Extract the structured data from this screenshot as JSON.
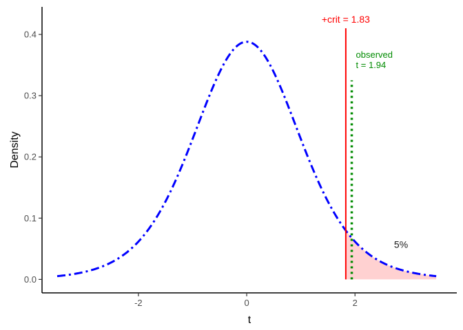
{
  "chart_data": {
    "type": "line",
    "title": "",
    "xlabel": "t",
    "ylabel": "Density",
    "xlim": [
      -3.78,
      3.88
    ],
    "ylim": [
      -0.022,
      0.445
    ],
    "x_ticks": [
      -2,
      0,
      2
    ],
    "x_tick_labels": [
      "-2",
      "0",
      "2"
    ],
    "y_ticks": [
      0.0,
      0.1,
      0.2,
      0.3,
      0.4
    ],
    "y_tick_labels": [
      "0.0",
      "0.1",
      "0.2",
      "0.3",
      "0.4"
    ],
    "grid": false,
    "legend": "none",
    "distribution": {
      "family": "student-t",
      "df": 9
    },
    "curve_x_range": [
      -3.5,
      3.5
    ],
    "series": [
      {
        "style": "dashed-dotted",
        "color": "#0000ff"
      }
    ],
    "shaded_region": {
      "x_from": 1.83,
      "x_to": 3.5,
      "color": "#ffd1d1"
    },
    "critical_line": {
      "x": 1.83,
      "y_top": 0.41,
      "label": "+crit = 1.83",
      "color": "#ff0000"
    },
    "observed_line": {
      "x": 1.94,
      "y_top": 0.325,
      "label_line1": "observed",
      "label_line2": "t = 1.94",
      "color": "#008b00"
    },
    "area_label": {
      "text": "5%",
      "x": 2.85,
      "y": 0.057
    },
    "colors": {
      "curve": "#0000ff",
      "critical": "#ff0000",
      "observed": "#008b00",
      "shade": "#ffd1d1"
    }
  }
}
